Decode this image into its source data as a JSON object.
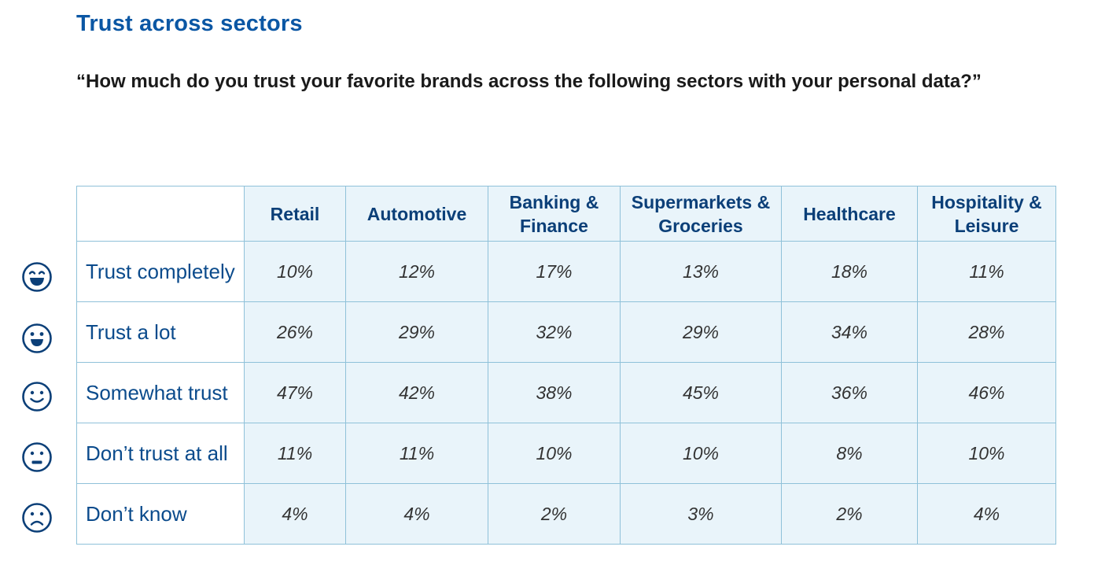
{
  "title": "Trust across sectors",
  "question": "“How much do you trust your favorite brands across the following sectors with your personal data?”",
  "colors": {
    "title": "#0b57a4",
    "header_text": "#0b3f78",
    "row_label_text": "#0b4b8c",
    "cell_fill": "#e9f4fa",
    "border": "#8fc1d9",
    "icon_stroke": "#0b3f78"
  },
  "table": {
    "columns": [
      "Retail",
      "Automotive",
      "Banking & Finance",
      "Supermarkets & Groceries",
      "Healthcare",
      "Hospitality & Leisure"
    ],
    "rows": [
      {
        "icon": "very-happy-face-icon",
        "label": "Trust completely",
        "values": [
          "10%",
          "12%",
          "17%",
          "13%",
          "18%",
          "11%"
        ]
      },
      {
        "icon": "happy-face-icon",
        "label": "Trust a lot",
        "values": [
          "26%",
          "29%",
          "32%",
          "29%",
          "34%",
          "28%"
        ]
      },
      {
        "icon": "slight-smile-face-icon",
        "label": "Somewhat trust",
        "values": [
          "47%",
          "42%",
          "38%",
          "45%",
          "36%",
          "46%"
        ]
      },
      {
        "icon": "neutral-face-icon",
        "label": "Don’t trust at all",
        "values": [
          "11%",
          "11%",
          "10%",
          "10%",
          "8%",
          "10%"
        ]
      },
      {
        "icon": "sad-face-icon",
        "label": "Don’t know",
        "values": [
          "4%",
          "4%",
          "2%",
          "3%",
          "2%",
          "4%"
        ]
      }
    ]
  }
}
